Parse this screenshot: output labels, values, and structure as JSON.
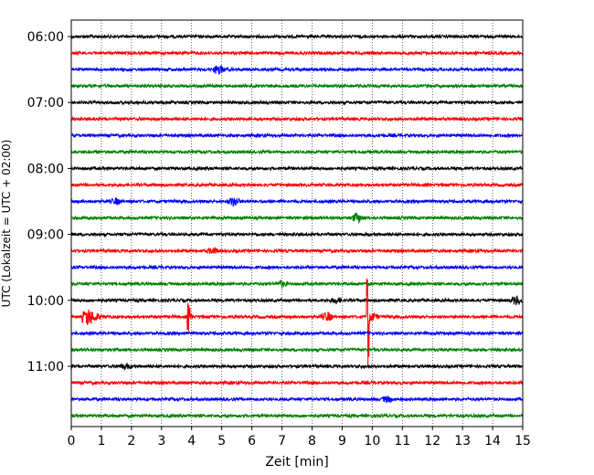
{
  "chart_data": {
    "type": "line",
    "title": "",
    "xlabel": "Zeit  [min]",
    "ylabel": "UTC (Lokalzeit = UTC + 02:00)",
    "xlim": [
      0,
      15
    ],
    "x_ticks": [
      0,
      1,
      2,
      3,
      4,
      5,
      6,
      7,
      8,
      9,
      10,
      11,
      12,
      13,
      14,
      15
    ],
    "y_ticks": [
      "06:00",
      "07:00",
      "08:00",
      "09:00",
      "10:00",
      "11:00"
    ],
    "row_minutes": 15,
    "start_time": "06:00",
    "end_time": "11:45",
    "rows": 24,
    "grid": "vertical-dotted",
    "colors": [
      "#000000",
      "#ff0000",
      "#0000ff",
      "#008000"
    ],
    "events": [
      {
        "row": 2,
        "minute": 4.9,
        "amp": "small"
      },
      {
        "row": 10,
        "minute": 5.4,
        "amp": "small"
      },
      {
        "row": 10,
        "minute": 1.5,
        "amp": "tiny"
      },
      {
        "row": 11,
        "minute": 9.5,
        "amp": "small"
      },
      {
        "row": 13,
        "minute": 4.7,
        "amp": "tiny"
      },
      {
        "row": 15,
        "minute": 7.0,
        "amp": "tiny"
      },
      {
        "row": 16,
        "minute": 14.8,
        "amp": "small"
      },
      {
        "row": 16,
        "minute": 8.8,
        "amp": "tiny"
      },
      {
        "row": 17,
        "minute": 0.5,
        "amp": "large"
      },
      {
        "row": 17,
        "minute": 3.9,
        "amp": "medium"
      },
      {
        "row": 17,
        "minute": 8.5,
        "amp": "small"
      },
      {
        "row": 17,
        "minute": 9.85,
        "amp": "huge"
      },
      {
        "row": 20,
        "minute": 1.8,
        "amp": "tiny"
      },
      {
        "row": 22,
        "minute": 10.5,
        "amp": "tiny"
      }
    ]
  }
}
